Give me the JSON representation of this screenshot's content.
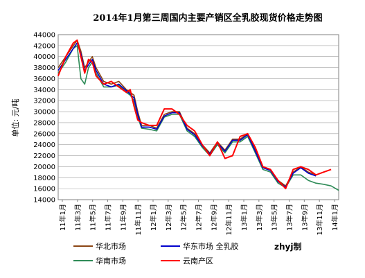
{
  "chart_data": {
    "type": "line",
    "title": "2014年1月第三周国内主要产销区全乳胶现货价格走势图",
    "ylabel": "单位: 元/吨",
    "xlabel": "",
    "ylim": [
      14000,
      44000
    ],
    "yticks": [
      14000,
      16000,
      18000,
      20000,
      22000,
      24000,
      26000,
      28000,
      30000,
      32000,
      34000,
      36000,
      38000,
      40000,
      42000,
      44000
    ],
    "xtick_labels": [
      "11年1月",
      "11年3月",
      "11年5月",
      "11年7月",
      "11年9月",
      "11年11月",
      "12年1月",
      "12年3月",
      "12年5月",
      "12年7月",
      "12年9月",
      "12年11月",
      "13年1月",
      "13年3月",
      "13年5月",
      "13年7月",
      "13年9月",
      "13年11月",
      "14年1月"
    ],
    "grid": true,
    "legend_position": "bottom",
    "credit": "zhyj制",
    "series": [
      {
        "name": "华北市场",
        "color": "#8b4513",
        "x": [
          0,
          1,
          2,
          2.5,
          3,
          3.5,
          4,
          4.5,
          5,
          6,
          7,
          8,
          9,
          9.5,
          10,
          10.5,
          11,
          12,
          13,
          14,
          15,
          16,
          17,
          18,
          19,
          20,
          21,
          22,
          23,
          24,
          25,
          26,
          27,
          28,
          29,
          30,
          31,
          32,
          33,
          34
        ],
        "values": [
          38000,
          40000,
          42000,
          43000,
          41000,
          38000,
          39000,
          40000,
          38000,
          35500,
          35000,
          35500,
          34000,
          33500,
          33000,
          30000,
          27500,
          27500,
          27000,
          29500,
          30000,
          30000,
          27000,
          26000,
          24000,
          22500,
          24500,
          23000,
          25000,
          25000,
          26000,
          23000,
          20000,
          19500,
          17500,
          16500,
          19000,
          20000,
          19000,
          18500
        ]
      },
      {
        "name": "华东市场 全乳胶",
        "color": "#0000cc",
        "x": [
          0,
          1,
          2,
          2.5,
          3,
          3.5,
          4,
          4.5,
          5,
          6,
          7,
          8,
          9,
          9.5,
          10,
          10.5,
          11,
          12,
          13,
          14,
          15,
          16,
          17,
          18,
          19,
          20,
          21,
          22,
          23,
          24,
          25,
          26,
          27,
          28,
          29,
          30,
          31,
          32,
          33,
          34
        ],
        "values": [
          37500,
          39500,
          41500,
          42500,
          40500,
          37500,
          38500,
          39500,
          37500,
          35000,
          34500,
          35000,
          33800,
          33200,
          32500,
          29500,
          27200,
          27200,
          26800,
          29200,
          29800,
          29800,
          26800,
          25800,
          23800,
          22300,
          24300,
          22800,
          24800,
          24800,
          25800,
          22800,
          19800,
          19300,
          17300,
          16300,
          18800,
          19800,
          18800,
          18300
        ]
      },
      {
        "name": "华南市场",
        "color": "#2e8b57",
        "x": [
          0,
          1,
          2,
          2.5,
          3,
          3.5,
          4,
          4.5,
          5,
          6,
          7,
          8,
          9,
          9.5,
          10,
          10.5,
          11,
          12,
          13,
          14,
          15,
          16,
          17,
          18,
          19,
          20,
          21,
          22,
          23,
          24,
          25,
          26,
          27,
          28,
          29,
          30,
          31,
          32,
          33,
          34,
          35,
          36,
          37
        ],
        "values": [
          37000,
          39000,
          41500,
          42000,
          36000,
          35000,
          38000,
          39000,
          37000,
          34500,
          34500,
          34800,
          33500,
          33000,
          32000,
          29000,
          27000,
          26800,
          26500,
          29000,
          29500,
          29500,
          26500,
          25500,
          23500,
          22000,
          24000,
          22500,
          24500,
          24500,
          25500,
          22500,
          19500,
          19000,
          17000,
          16200,
          18500,
          18500,
          17500,
          17000,
          16800,
          16500,
          15700
        ]
      },
      {
        "name": "云南产区",
        "color": "#ff0000",
        "x": [
          0,
          1,
          2,
          2.5,
          3,
          3.5,
          4,
          4.5,
          5,
          6,
          7,
          8,
          9,
          9.5,
          10,
          10.5,
          11,
          12,
          13,
          14,
          15,
          16,
          17,
          18,
          19,
          20,
          21,
          22,
          23,
          24,
          25,
          26,
          27,
          28,
          29,
          30,
          31,
          32,
          33,
          34,
          35,
          36
        ],
        "values": [
          36500,
          40000,
          42500,
          43000,
          40000,
          37000,
          39500,
          39000,
          36500,
          35000,
          35500,
          34500,
          33500,
          34000,
          31000,
          28500,
          28000,
          27500,
          27500,
          30500,
          30500,
          29500,
          27500,
          26500,
          24000,
          22000,
          24500,
          21500,
          22000,
          25500,
          26000,
          23500,
          20000,
          19500,
          17500,
          16000,
          19500,
          20000,
          19500,
          18500,
          19000,
          19500
        ]
      }
    ]
  }
}
